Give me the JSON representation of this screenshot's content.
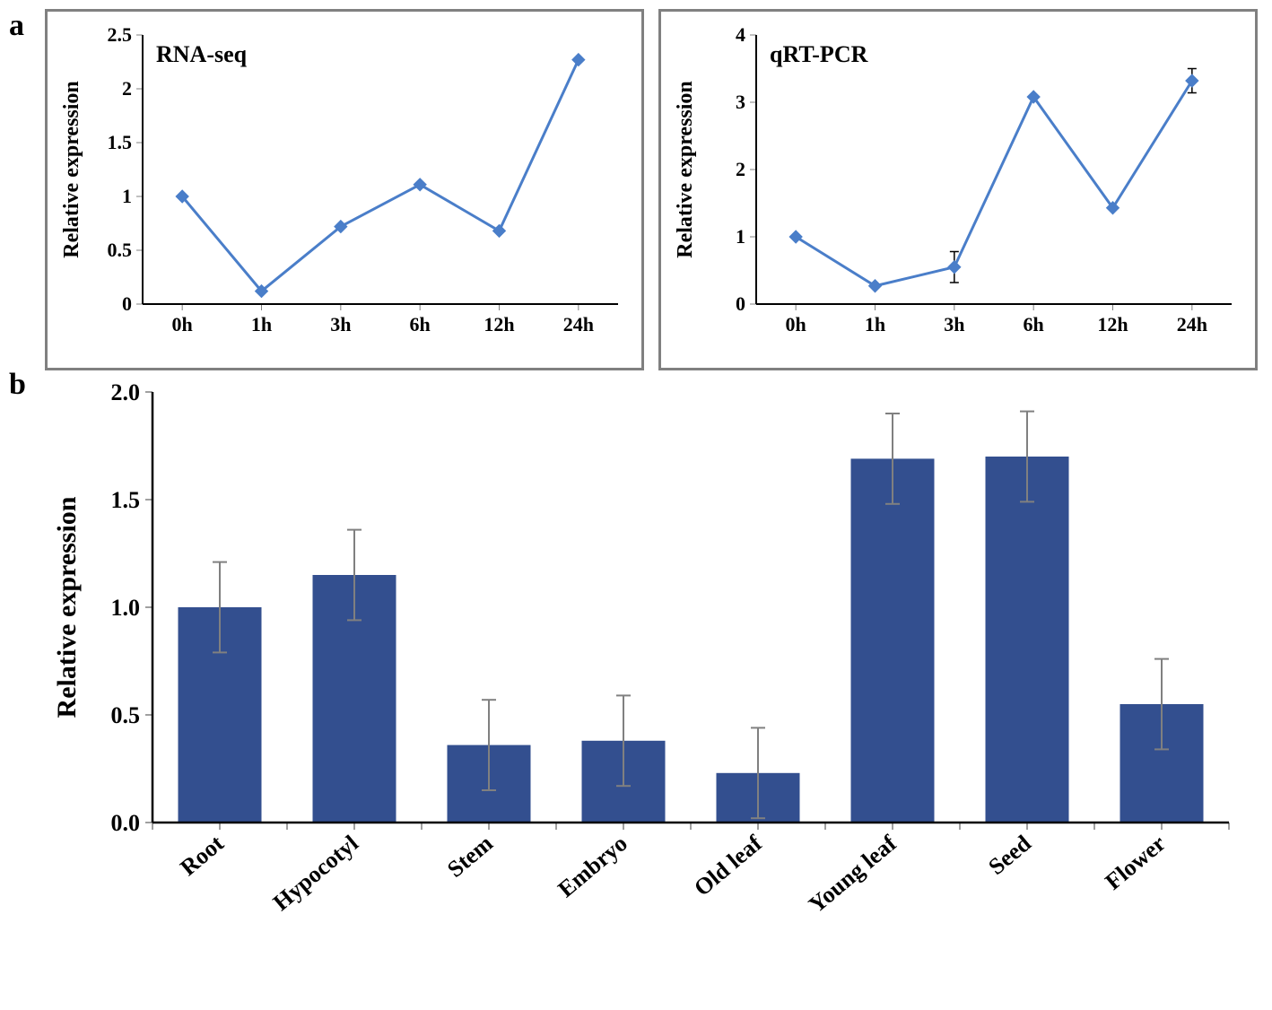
{
  "panel_labels": {
    "a": "a",
    "b": "b"
  },
  "chart_a1": {
    "type": "line",
    "title": "RNA-seq",
    "title_fontsize": 26,
    "title_weight": "bold",
    "ylabel": "Relative expression",
    "ylabel_fontsize": 24,
    "label_weight": "bold",
    "x_categories": [
      "0h",
      "1h",
      "3h",
      "6h",
      "12h",
      "24h"
    ],
    "y_values": [
      1.0,
      0.12,
      0.72,
      1.11,
      0.68,
      2.27
    ],
    "error_values": [
      0,
      0,
      0,
      0,
      0,
      0
    ],
    "ylim": [
      0,
      2.5
    ],
    "yticks": [
      0,
      0.5,
      1,
      1.5,
      2,
      2.5
    ],
    "ytick_labels": [
      "0",
      "0.5",
      "1",
      "1.5",
      "2",
      "2.5"
    ],
    "xtick_fontsize": 22,
    "ytick_fontsize": 22,
    "line_color": "#4a7ec9",
    "marker_color": "#4a7ec9",
    "marker_size": 7,
    "line_width": 3,
    "axis_color": "#000000",
    "tick_color": "#808080",
    "background_color": "#ffffff",
    "box_border_color": "#808080",
    "box_border_width": 3
  },
  "chart_a2": {
    "type": "line",
    "title": "qRT-PCR",
    "title_fontsize": 26,
    "title_weight": "bold",
    "ylabel": "Relative expression",
    "ylabel_fontsize": 24,
    "label_weight": "bold",
    "x_categories": [
      "0h",
      "1h",
      "3h",
      "6h",
      "12h",
      "24h"
    ],
    "y_values": [
      1.0,
      0.27,
      0.55,
      3.08,
      1.43,
      3.32
    ],
    "error_values": [
      0,
      0,
      0.23,
      0,
      0,
      0.18
    ],
    "ylim": [
      0,
      4
    ],
    "yticks": [
      0,
      1,
      2,
      3,
      4
    ],
    "ytick_labels": [
      "0",
      "1",
      "2",
      "3",
      "4"
    ],
    "xtick_fontsize": 22,
    "ytick_fontsize": 22,
    "line_color": "#4a7ec9",
    "marker_color": "#4a7ec9",
    "marker_size": 7,
    "line_width": 3,
    "axis_color": "#000000",
    "tick_color": "#808080",
    "error_color": "#000000",
    "background_color": "#ffffff",
    "box_border_color": "#808080",
    "box_border_width": 3
  },
  "chart_b": {
    "type": "bar",
    "ylabel": "Relative expression",
    "ylabel_fontsize": 30,
    "label_weight": "bold",
    "x_categories": [
      "Root",
      "Hypocotyl",
      "Stem",
      "Embryo",
      "Old leaf",
      "Young leaf",
      "Seed",
      "Flower"
    ],
    "y_values": [
      1.0,
      1.15,
      0.36,
      0.38,
      0.23,
      1.69,
      1.7,
      0.55
    ],
    "error_values": [
      0.21,
      0.21,
      0.21,
      0.21,
      0.21,
      0.21,
      0.21,
      0.21
    ],
    "ylim": [
      0.0,
      2.0
    ],
    "yticks": [
      0.0,
      0.5,
      1.0,
      1.5,
      2.0
    ],
    "ytick_labels": [
      "0.0",
      "0.5",
      "1.0",
      "1.5",
      "2.0"
    ],
    "xtick_fontsize": 26,
    "ytick_fontsize": 26,
    "xtick_rotation": -40,
    "bar_color": "#334f8f",
    "bar_width_ratio": 0.62,
    "axis_color": "#000000",
    "tick_color": "#808080",
    "error_color": "#808080",
    "background_color": "#ffffff"
  }
}
